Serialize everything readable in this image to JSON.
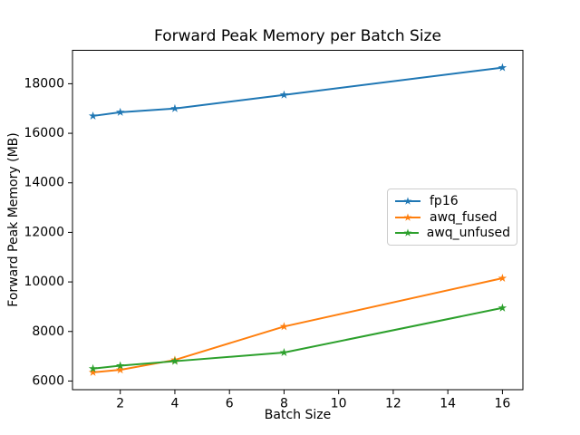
{
  "window": {
    "background": "#ffffff"
  },
  "chart_data": {
    "type": "line",
    "title": "Forward Peak Memory per Batch Size",
    "xlabel": "Batch Size",
    "ylabel": "Forward Peak Memory (MB)",
    "x": [
      1,
      2,
      4,
      8,
      16
    ],
    "series": [
      {
        "name": "fp16",
        "color": "#1f77b4",
        "marker": "star",
        "values": [
          16700,
          16850,
          17000,
          17550,
          18650
        ]
      },
      {
        "name": "awq_fused",
        "color": "#ff7f0e",
        "marker": "star",
        "values": [
          6350,
          6450,
          6850,
          8200,
          10150
        ]
      },
      {
        "name": "awq_unfused",
        "color": "#2ca02c",
        "marker": "star",
        "values": [
          6500,
          6620,
          6800,
          7150,
          8950
        ]
      }
    ],
    "xticks": [
      2,
      4,
      6,
      8,
      10,
      12,
      14,
      16
    ],
    "yticks": [
      6000,
      8000,
      10000,
      12000,
      14000,
      16000,
      18000
    ],
    "xlim": [
      0.25,
      16.75
    ],
    "ylim": [
      5650,
      19350
    ],
    "grid": false,
    "legend_position": "center right",
    "legend_entries": [
      "fp16",
      "awq_fused",
      "awq_unfused"
    ],
    "axis_color": "#000000",
    "legend_border_color": "#cccccc"
  }
}
